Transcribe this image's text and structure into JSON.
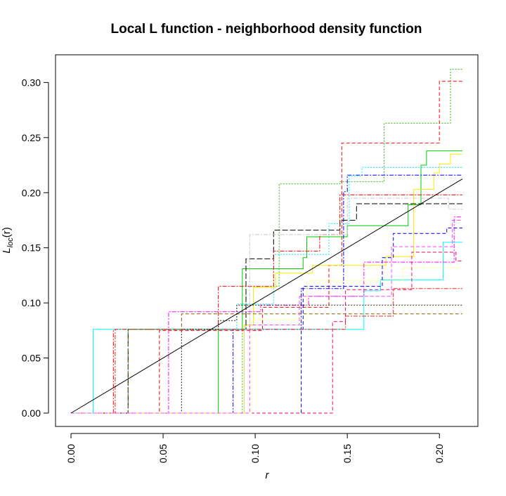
{
  "chart_data": {
    "type": "line",
    "title": "Local L function - neighborhood density function",
    "xlabel": "r",
    "ylabel_main": "L",
    "ylabel_sub": "loc",
    "ylabel_arg": "(r)",
    "xlim": [
      0,
      0.2125
    ],
    "ylim": [
      0,
      0.32
    ],
    "x_ticks": [
      0.0,
      0.05,
      0.1,
      0.15,
      0.2
    ],
    "x_tick_labels": [
      "0.00",
      "0.05",
      "0.10",
      "0.15",
      "0.20"
    ],
    "y_ticks": [
      0.0,
      0.05,
      0.1,
      0.15,
      0.2,
      0.25,
      0.3
    ],
    "y_tick_labels": [
      "0.00",
      "0.05",
      "0.10",
      "0.15",
      "0.20",
      "0.25",
      "0.30"
    ],
    "grid": false,
    "legend": "none",
    "reference_line": {
      "x": [
        0,
        0.2125
      ],
      "y": [
        0,
        0.2125
      ],
      "color": "#000000"
    },
    "series": [
      {
        "color": "#2ec000",
        "dash": "2,2",
        "steps": [
          [
            0,
            0
          ],
          [
            0.093,
            0.076
          ],
          [
            0.095,
            0.115
          ],
          [
            0.113,
            0.208
          ],
          [
            0.146,
            0.21
          ],
          [
            0.17,
            0.263
          ],
          [
            0.206,
            0.312
          ],
          [
            0.2125,
            0.312
          ]
        ]
      },
      {
        "color": "#ff0000",
        "dash": "5,3",
        "steps": [
          [
            0,
            0
          ],
          [
            0.048,
            0.075
          ],
          [
            0.104,
            0.096
          ],
          [
            0.14,
            0.134
          ],
          [
            0.147,
            0.245
          ],
          [
            0.2,
            0.301
          ],
          [
            0.2125,
            0.301
          ]
        ]
      },
      {
        "color": "#00cc00",
        "dash": "",
        "steps": [
          [
            0,
            0
          ],
          [
            0.08,
            0.076
          ],
          [
            0.093,
            0.131
          ],
          [
            0.126,
            0.141
          ],
          [
            0.128,
            0.16
          ],
          [
            0.15,
            0.17
          ],
          [
            0.183,
            0.189
          ],
          [
            0.19,
            0.225
          ],
          [
            0.193,
            0.238
          ],
          [
            0.2125,
            0.238
          ]
        ]
      },
      {
        "color": "#ffea00",
        "dash": "",
        "steps": [
          [
            0,
            0
          ],
          [
            0.094,
            0.08
          ],
          [
            0.099,
            0.114
          ],
          [
            0.111,
            0.127
          ],
          [
            0.131,
            0.134
          ],
          [
            0.171,
            0.142
          ],
          [
            0.186,
            0.203
          ],
          [
            0.197,
            0.218
          ],
          [
            0.2,
            0.226
          ],
          [
            0.206,
            0.235
          ],
          [
            0.2125,
            0.235
          ]
        ]
      },
      {
        "color": "#00f0ff",
        "dash": "2,2",
        "steps": [
          [
            0,
            0
          ],
          [
            0.031,
            0.076
          ],
          [
            0.09,
            0.099
          ],
          [
            0.11,
            0.144
          ],
          [
            0.14,
            0.172
          ],
          [
            0.151,
            0.215
          ],
          [
            0.158,
            0.223
          ],
          [
            0.2125,
            0.223
          ]
        ]
      },
      {
        "color": "#0000ff",
        "dash": "6,2,2,2",
        "steps": [
          [
            0,
            0
          ],
          [
            0.088,
            0.076
          ],
          [
            0.125,
            0.113
          ],
          [
            0.148,
            0.201
          ],
          [
            0.15,
            0.216
          ],
          [
            0.2125,
            0.216
          ]
        ]
      },
      {
        "color": "#000000",
        "dash": "8,3",
        "steps": [
          [
            0,
            0
          ],
          [
            0.031,
            0.076
          ],
          [
            0.095,
            0.14
          ],
          [
            0.11,
            0.166
          ],
          [
            0.144,
            0.166
          ],
          [
            0.146,
            0.175
          ],
          [
            0.155,
            0.19
          ],
          [
            0.2125,
            0.19
          ]
        ]
      },
      {
        "color": "#ff0000",
        "dash": "6,2,2,2",
        "steps": [
          [
            0,
            0
          ],
          [
            0.023,
            0.076
          ],
          [
            0.08,
            0.115
          ],
          [
            0.103,
            0.115
          ],
          [
            0.11,
            0.147
          ],
          [
            0.135,
            0.162
          ],
          [
            0.146,
            0.198
          ],
          [
            0.203,
            0.198
          ],
          [
            0.2125,
            0.198
          ]
        ]
      },
      {
        "color": "#c8c8c8",
        "dash": "6,2,2,2",
        "steps": [
          [
            0,
            0
          ],
          [
            0.094,
            0.076
          ],
          [
            0.097,
            0.162
          ],
          [
            0.15,
            0.195
          ],
          [
            0.205,
            0.185
          ],
          [
            0.2125,
            0.185
          ]
        ]
      },
      {
        "color": "#00ffff",
        "dash": "",
        "steps": [
          [
            0,
            0
          ],
          [
            0.012,
            0.076
          ],
          [
            0.159,
            0.111
          ],
          [
            0.168,
            0.121
          ],
          [
            0.202,
            0.155
          ],
          [
            0.2125,
            0.155
          ]
        ]
      },
      {
        "color": "#ff00ff",
        "dash": "6,2,2,2",
        "steps": [
          [
            0,
            0
          ],
          [
            0.053,
            0.092
          ],
          [
            0.103,
            0.098
          ],
          [
            0.129,
            0.106
          ],
          [
            0.159,
            0.137
          ],
          [
            0.208,
            0.178
          ],
          [
            0.2125,
            0.178
          ]
        ]
      },
      {
        "color": "#0000ff",
        "dash": "5,3",
        "steps": [
          [
            0,
            0
          ],
          [
            0.125,
            0.076
          ],
          [
            0.126,
            0.115
          ],
          [
            0.149,
            0.115
          ],
          [
            0.169,
            0.141
          ],
          [
            0.175,
            0.163
          ],
          [
            0.204,
            0.168
          ],
          [
            0.2125,
            0.168
          ]
        ]
      },
      {
        "color": "#ff0066",
        "dash": "5,3",
        "steps": [
          [
            0,
            0
          ],
          [
            0.142,
            0.083
          ],
          [
            0.149,
            0.112
          ],
          [
            0.185,
            0.146
          ],
          [
            0.209,
            0.138
          ],
          [
            0.2125,
            0.138
          ]
        ]
      },
      {
        "color": "#ff2020",
        "dash": "6,2,2,2",
        "steps": [
          [
            0,
            0
          ],
          [
            0.024,
            0.076
          ],
          [
            0.149,
            0.088
          ],
          [
            0.175,
            0.113
          ],
          [
            0.2125,
            0.113
          ]
        ]
      },
      {
        "color": "#806000",
        "dash": "5,3",
        "steps": [
          [
            0,
            0
          ],
          [
            0.031,
            0.076
          ],
          [
            0.06,
            0.09
          ],
          [
            0.2125,
            0.09
          ]
        ]
      },
      {
        "color": "#202000",
        "dash": "2,2",
        "steps": [
          [
            0,
            0
          ],
          [
            0.06,
            0.076
          ],
          [
            0.08,
            0.084
          ],
          [
            0.09,
            0.098
          ],
          [
            0.2125,
            0.098
          ]
        ]
      },
      {
        "color": "#ffff60",
        "dash": "2,2",
        "steps": [
          [
            0,
            0
          ],
          [
            0.098,
            0.085
          ],
          [
            0.128,
            0.12
          ],
          [
            0.18,
            0.132
          ],
          [
            0.2125,
            0.132
          ]
        ]
      },
      {
        "color": "#ff44ff",
        "dash": "5,3",
        "steps": [
          [
            0,
            0
          ],
          [
            0.097,
            0.08
          ],
          [
            0.124,
            0.106
          ],
          [
            0.174,
            0.151
          ],
          [
            0.207,
            0.175
          ],
          [
            0.2125,
            0.175
          ]
        ]
      }
    ]
  }
}
